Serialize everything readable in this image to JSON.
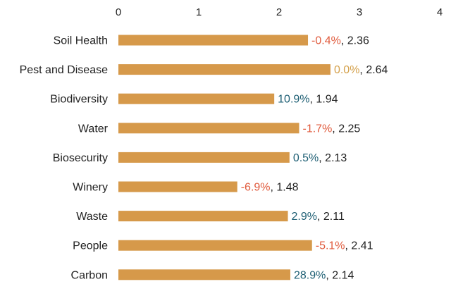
{
  "chart_data": {
    "type": "bar",
    "orientation": "horizontal",
    "categories": [
      "Soil Health",
      "Pest and Disease",
      "Biodiversity",
      "Water",
      "Biosecurity",
      "Winery",
      "Waste",
      "People",
      "Carbon"
    ],
    "values": [
      2.36,
      2.64,
      1.94,
      2.25,
      2.13,
      1.48,
      2.11,
      2.41,
      2.14
    ],
    "changes": [
      "-0.4%",
      "0.0%",
      "10.9%",
      "-1.7%",
      "0.5%",
      "-6.9%",
      "2.9%",
      "-5.1%",
      "28.9%"
    ],
    "change_colors": [
      "#e05a3c",
      "#d4a04a",
      "#1e5f74",
      "#e05a3c",
      "#1e5f74",
      "#e05a3c",
      "#1e5f74",
      "#e05a3c",
      "#1e5f74"
    ],
    "value_labels": [
      "2.36",
      "2.64",
      "1.94",
      "2.25",
      "2.13",
      "1.48",
      "2.11",
      "2.41",
      "2.14"
    ],
    "xlim": [
      0,
      4
    ],
    "xticks": [
      "0",
      "1",
      "2",
      "3",
      "4"
    ],
    "xaxis_position": "top",
    "grid": false,
    "title": "",
    "xlabel": "",
    "ylabel": "",
    "colors": {
      "bar": "#d6994a",
      "text": "#222222"
    }
  }
}
